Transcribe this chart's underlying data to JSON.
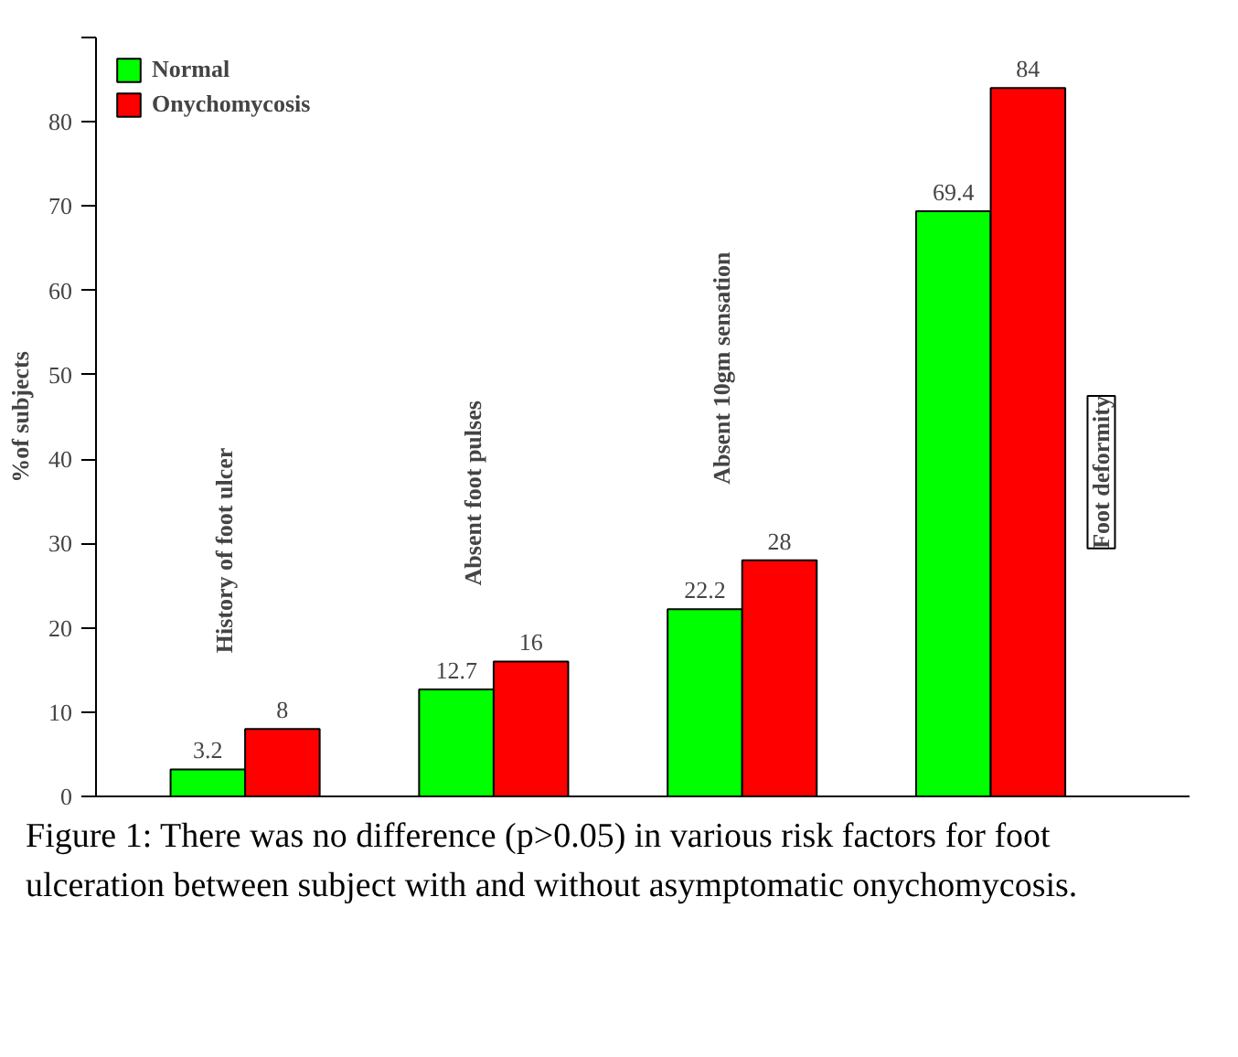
{
  "chart_data": {
    "type": "bar",
    "ylabel": "%of subjects",
    "categories": [
      "History of foot ulcer",
      "Absent foot pulses",
      "Absent 10gm sensation",
      "Foot deformity"
    ],
    "series": [
      {
        "name": "Normal",
        "color": "#00ff00",
        "values": [
          3.2,
          12.7,
          22.2,
          69.4
        ]
      },
      {
        "name": "Onychomycosis",
        "color": "#ff0000",
        "values": [
          8,
          16,
          28,
          84
        ]
      }
    ],
    "ylim": [
      0,
      90
    ],
    "yticks": [
      0,
      10,
      20,
      30,
      40,
      50,
      60,
      70,
      80,
      {
        "value": 90,
        "label": null
      }
    ],
    "data_labels": true,
    "grid": false,
    "legend": "top left",
    "annotations": [
      "Figure 1: There was no difference (p>0.05) in various risk factors for foot ulceration between subject with and without asymptomatic onychomycosis."
    ]
  }
}
